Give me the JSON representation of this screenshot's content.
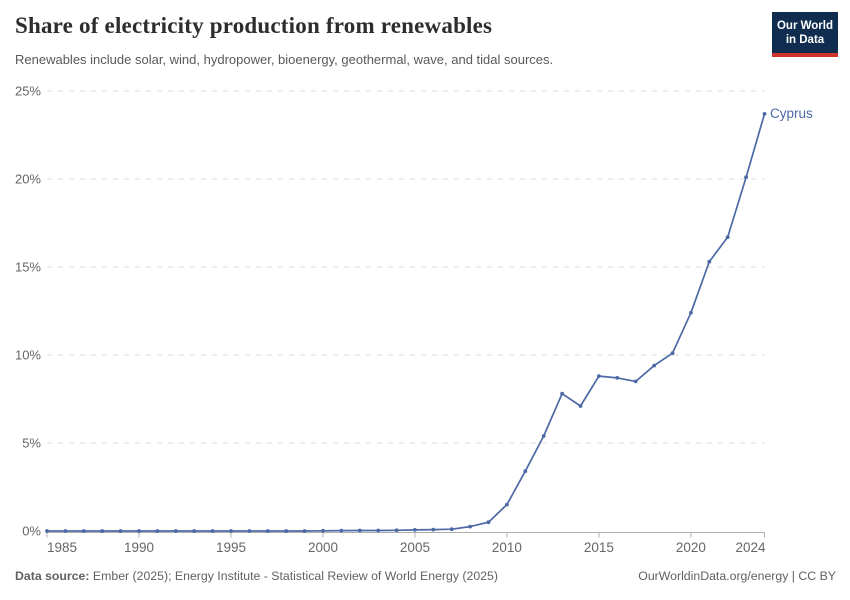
{
  "header": {
    "title": "Share of electricity production from renewables",
    "subtitle": "Renewables include solar, wind, hydropower, bioenergy, geothermal, wave, and tidal sources.",
    "logo": {
      "line1": "Our World",
      "line2": "in Data"
    }
  },
  "chart_data": {
    "type": "line",
    "title": "Share of electricity production from renewables",
    "xlabel": "",
    "ylabel": "",
    "xlim": [
      1985,
      2024
    ],
    "ylim": [
      0,
      25
    ],
    "grid": "horizontal-dashed",
    "legend_position": "end-of-line-label",
    "x_ticks": [
      1985,
      1990,
      1995,
      2000,
      2005,
      2010,
      2015,
      2020,
      2024
    ],
    "y_ticks": [
      0,
      5,
      10,
      15,
      20,
      25
    ],
    "y_tick_suffix": "%",
    "x": [
      1985,
      1986,
      1987,
      1988,
      1989,
      1990,
      1991,
      1992,
      1993,
      1994,
      1995,
      1996,
      1997,
      1998,
      1999,
      2000,
      2001,
      2002,
      2003,
      2004,
      2005,
      2006,
      2007,
      2008,
      2009,
      2010,
      2011,
      2012,
      2013,
      2014,
      2015,
      2016,
      2017,
      2018,
      2019,
      2020,
      2021,
      2022,
      2023,
      2024
    ],
    "series": [
      {
        "name": "Cyprus",
        "color": "#4c69a5",
        "values": [
          0,
          0,
          0,
          0,
          0,
          0,
          0,
          0,
          0,
          0,
          0,
          0,
          0,
          0,
          0,
          0.01,
          0.02,
          0.03,
          0.03,
          0.04,
          0.06,
          0.08,
          0.1,
          0.25,
          0.5,
          1.5,
          3.4,
          5.4,
          7.8,
          7.1,
          8.8,
          8.7,
          8.5,
          9.4,
          10.1,
          12.4,
          15.3,
          16.7,
          20.1,
          23.7
        ]
      }
    ]
  },
  "colors": {
    "line": "#4c69a5",
    "grid": "#dcdcdc",
    "axis": "#adadad",
    "tick_label": "#666666",
    "logo_bg": "#102d50",
    "logo_red": "#ce342b"
  },
  "footer": {
    "datasource_label": "Data source:",
    "datasource_text": " Ember (2025); Energy Institute - Statistical Review of World Energy (2025)",
    "credit": "OurWorldinData.org/energy | CC BY"
  }
}
